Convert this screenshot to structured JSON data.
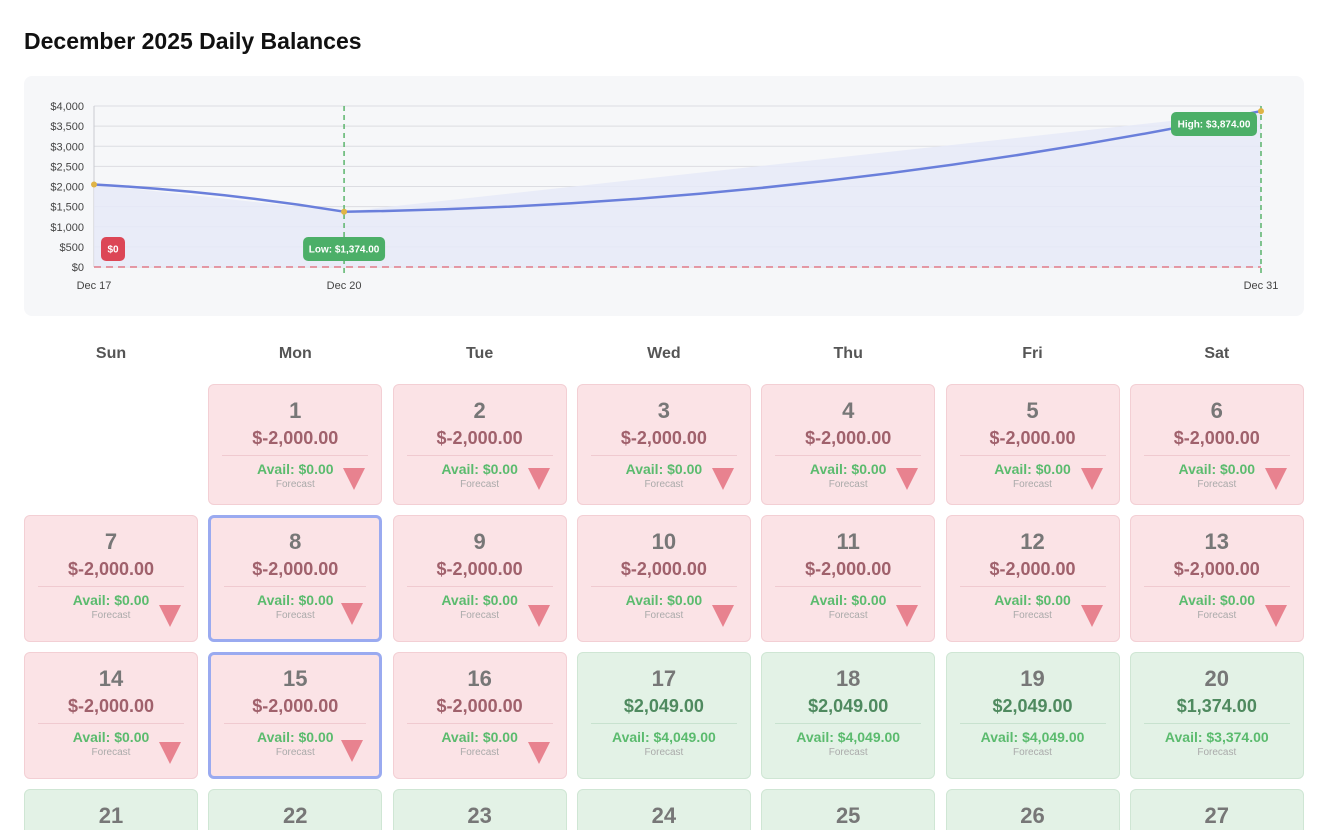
{
  "page": {
    "title": "December 2025 Daily Balances"
  },
  "chart_data": {
    "type": "area",
    "x": [
      "Dec 17",
      "Dec 20",
      "Dec 31"
    ],
    "y": [
      2049,
      1374,
      3874
    ],
    "y_tick_labels": [
      "$0",
      "$500",
      "$1,000",
      "$1,500",
      "$2,000",
      "$2,500",
      "$3,000",
      "$3,500",
      "$4,000"
    ],
    "y_ticks": [
      0,
      500,
      1000,
      1500,
      2000,
      2500,
      3000,
      3500,
      4000
    ],
    "ylim": [
      0,
      4000
    ],
    "x_tick_labels": [
      "Dec 17",
      "Dec 20",
      "Dec 31"
    ],
    "grid": true,
    "annotations": {
      "zero_label": "$0",
      "low_label": "Low: $1,374.00",
      "low_x": "Dec 20",
      "high_label": "High: $3,874.00",
      "high_x": "Dec 31"
    },
    "colors": {
      "line": "#6a7fdb",
      "fill": "#e6eaf8",
      "zero_line": "#e07a88",
      "marker_line": "#5bb46c",
      "zero_badge": "#dc4656",
      "low_badge": "#4caf68",
      "high_badge": "#4caf68",
      "point": "#e0b446"
    }
  },
  "calendar": {
    "weekdays": [
      "Sun",
      "Mon",
      "Tue",
      "Wed",
      "Thu",
      "Fri",
      "Sat"
    ],
    "forecast_label": "Forecast",
    "days": [
      {
        "num": "1",
        "balance": "$-2,000.00",
        "avail": "Avail: $0.00",
        "status": "neg"
      },
      {
        "num": "2",
        "balance": "$-2,000.00",
        "avail": "Avail: $0.00",
        "status": "neg"
      },
      {
        "num": "3",
        "balance": "$-2,000.00",
        "avail": "Avail: $0.00",
        "status": "neg"
      },
      {
        "num": "4",
        "balance": "$-2,000.00",
        "avail": "Avail: $0.00",
        "status": "neg"
      },
      {
        "num": "5",
        "balance": "$-2,000.00",
        "avail": "Avail: $0.00",
        "status": "neg"
      },
      {
        "num": "6",
        "balance": "$-2,000.00",
        "avail": "Avail: $0.00",
        "status": "neg"
      },
      {
        "num": "7",
        "balance": "$-2,000.00",
        "avail": "Avail: $0.00",
        "status": "neg"
      },
      {
        "num": "8",
        "balance": "$-2,000.00",
        "avail": "Avail: $0.00",
        "status": "neg",
        "selected": true
      },
      {
        "num": "9",
        "balance": "$-2,000.00",
        "avail": "Avail: $0.00",
        "status": "neg"
      },
      {
        "num": "10",
        "balance": "$-2,000.00",
        "avail": "Avail: $0.00",
        "status": "neg"
      },
      {
        "num": "11",
        "balance": "$-2,000.00",
        "avail": "Avail: $0.00",
        "status": "neg"
      },
      {
        "num": "12",
        "balance": "$-2,000.00",
        "avail": "Avail: $0.00",
        "status": "neg"
      },
      {
        "num": "13",
        "balance": "$-2,000.00",
        "avail": "Avail: $0.00",
        "status": "neg"
      },
      {
        "num": "14",
        "balance": "$-2,000.00",
        "avail": "Avail: $0.00",
        "status": "neg"
      },
      {
        "num": "15",
        "balance": "$-2,000.00",
        "avail": "Avail: $0.00",
        "status": "neg",
        "selected": true
      },
      {
        "num": "16",
        "balance": "$-2,000.00",
        "avail": "Avail: $0.00",
        "status": "neg"
      },
      {
        "num": "17",
        "balance": "$2,049.00",
        "avail": "Avail: $4,049.00",
        "status": "pos"
      },
      {
        "num": "18",
        "balance": "$2,049.00",
        "avail": "Avail: $4,049.00",
        "status": "pos"
      },
      {
        "num": "19",
        "balance": "$2,049.00",
        "avail": "Avail: $4,049.00",
        "status": "pos"
      },
      {
        "num": "20",
        "balance": "$1,374.00",
        "avail": "Avail: $3,374.00",
        "status": "pos"
      },
      {
        "num": "21",
        "status": "pos"
      },
      {
        "num": "22",
        "status": "pos"
      },
      {
        "num": "23",
        "status": "pos"
      },
      {
        "num": "24",
        "status": "pos"
      },
      {
        "num": "25",
        "status": "pos"
      },
      {
        "num": "26",
        "status": "pos"
      },
      {
        "num": "27",
        "status": "pos"
      }
    ]
  }
}
